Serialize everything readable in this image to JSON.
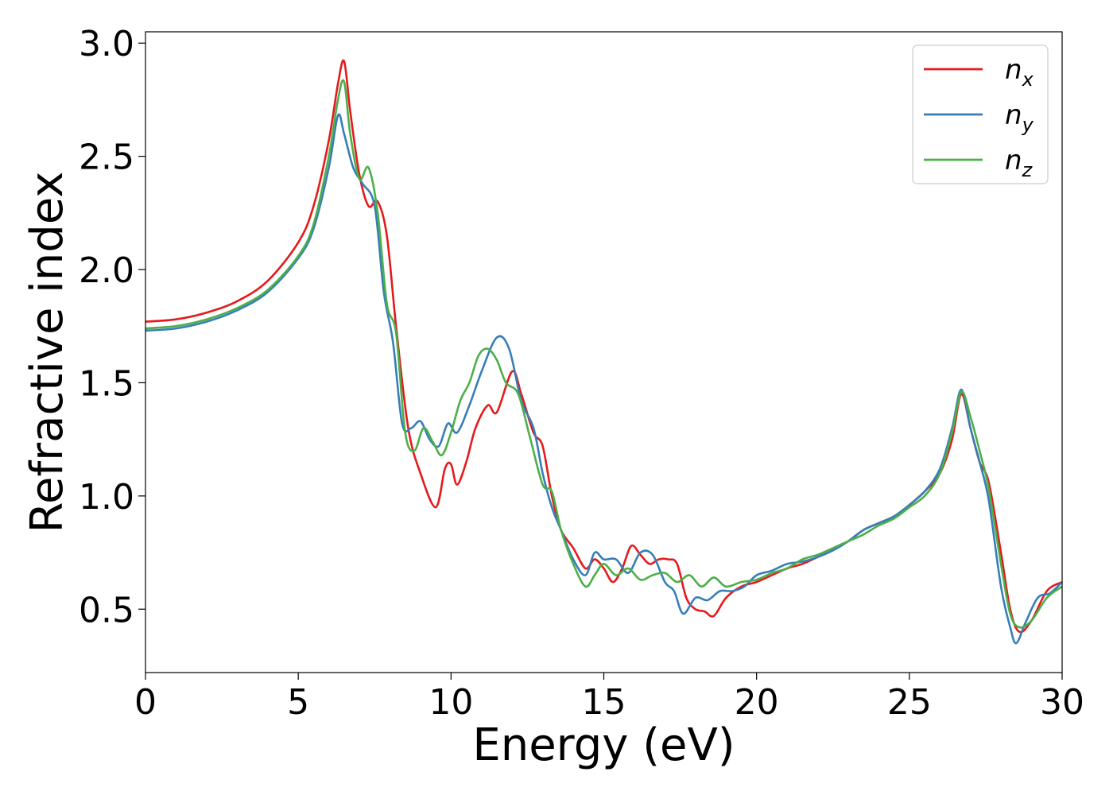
{
  "chart_data": {
    "type": "line",
    "title": "",
    "xlabel": "Energy (eV)",
    "ylabel": "Refractive index",
    "xlim": [
      0,
      30
    ],
    "ylim": [
      0.22,
      3.05
    ],
    "xticks": [
      0,
      5,
      10,
      15,
      20,
      25,
      30
    ],
    "xtick_labels": [
      "0",
      "5",
      "10",
      "15",
      "20",
      "25",
      "30"
    ],
    "yticks": [
      0.5,
      1.0,
      1.5,
      2.0,
      2.5,
      3.0
    ],
    "ytick_labels": [
      "0.5",
      "1.0",
      "1.5",
      "2.0",
      "2.5",
      "3.0"
    ],
    "grid": false,
    "legend_position": "top-right",
    "series": [
      {
        "name": "n_x",
        "legend_base": "n",
        "legend_sub": "x",
        "color": "#e41a1c",
        "x": [
          0,
          1,
          2,
          3,
          4,
          5,
          5.5,
          6.0,
          6.3,
          6.5,
          6.7,
          7.0,
          7.3,
          7.6,
          7.9,
          8.2,
          8.6,
          9.0,
          9.5,
          9.8,
          10.0,
          10.2,
          10.5,
          10.8,
          11.2,
          11.5,
          12.0,
          12.3,
          12.7,
          13.0,
          13.3,
          13.6,
          14.0,
          14.4,
          14.7,
          15.0,
          15.3,
          15.6,
          15.9,
          16.2,
          16.5,
          16.8,
          17.1,
          17.4,
          17.7,
          18.0,
          18.3,
          18.6,
          19.0,
          19.5,
          20.0,
          20.5,
          21.0,
          21.5,
          22.0,
          22.5,
          23.0,
          23.5,
          24.0,
          24.5,
          25.0,
          25.5,
          26.0,
          26.4,
          26.7,
          27.0,
          27.3,
          27.6,
          28.0,
          28.3,
          28.6,
          29.0,
          29.5,
          30.0
        ],
        "values": [
          1.77,
          1.78,
          1.81,
          1.86,
          1.95,
          2.12,
          2.28,
          2.57,
          2.82,
          2.92,
          2.7,
          2.42,
          2.28,
          2.3,
          2.15,
          1.75,
          1.3,
          1.1,
          0.95,
          1.12,
          1.14,
          1.05,
          1.15,
          1.3,
          1.4,
          1.37,
          1.55,
          1.45,
          1.28,
          1.22,
          1.0,
          0.85,
          0.77,
          0.68,
          0.72,
          0.68,
          0.62,
          0.68,
          0.78,
          0.74,
          0.7,
          0.72,
          0.72,
          0.7,
          0.55,
          0.5,
          0.49,
          0.47,
          0.55,
          0.6,
          0.62,
          0.65,
          0.68,
          0.7,
          0.73,
          0.76,
          0.8,
          0.85,
          0.88,
          0.91,
          0.96,
          1.02,
          1.1,
          1.25,
          1.45,
          1.3,
          1.15,
          1.06,
          0.75,
          0.5,
          0.4,
          0.45,
          0.58,
          0.62
        ]
      },
      {
        "name": "n_y",
        "legend_base": "n",
        "legend_sub": "y",
        "color": "#377eb8",
        "x": [
          0,
          1,
          2,
          3,
          4,
          5,
          5.5,
          6.0,
          6.3,
          6.5,
          6.8,
          7.1,
          7.5,
          7.8,
          8.1,
          8.4,
          8.7,
          9.0,
          9.3,
          9.6,
          9.9,
          10.2,
          10.6,
          11.0,
          11.5,
          11.9,
          12.3,
          12.7,
          13.0,
          13.3,
          13.6,
          14.0,
          14.4,
          14.7,
          15.0,
          15.4,
          15.8,
          16.2,
          16.6,
          17.0,
          17.3,
          17.6,
          18.0,
          18.4,
          18.8,
          19.2,
          19.6,
          20.0,
          20.5,
          21.0,
          21.5,
          22.0,
          22.5,
          23.0,
          23.5,
          24.0,
          24.5,
          25.0,
          25.5,
          26.0,
          26.4,
          26.7,
          27.0,
          27.3,
          27.6,
          28.0,
          28.3,
          28.5,
          28.8,
          29.2,
          29.6,
          30.0
        ],
        "values": [
          1.73,
          1.74,
          1.77,
          1.82,
          1.9,
          2.05,
          2.18,
          2.45,
          2.68,
          2.6,
          2.45,
          2.38,
          2.28,
          1.9,
          1.68,
          1.32,
          1.3,
          1.33,
          1.25,
          1.22,
          1.32,
          1.28,
          1.4,
          1.55,
          1.7,
          1.65,
          1.42,
          1.3,
          1.1,
          0.95,
          0.85,
          0.72,
          0.65,
          0.75,
          0.72,
          0.72,
          0.66,
          0.75,
          0.74,
          0.62,
          0.58,
          0.48,
          0.55,
          0.54,
          0.58,
          0.58,
          0.6,
          0.65,
          0.67,
          0.7,
          0.71,
          0.73,
          0.76,
          0.8,
          0.85,
          0.88,
          0.91,
          0.96,
          1.02,
          1.12,
          1.3,
          1.47,
          1.3,
          1.15,
          0.98,
          0.6,
          0.42,
          0.35,
          0.44,
          0.55,
          0.57,
          0.62
        ]
      },
      {
        "name": "n_z",
        "legend_base": "n",
        "legend_sub": "z",
        "color": "#4daf4a",
        "x": [
          0,
          1,
          2,
          3,
          4,
          5,
          5.5,
          6.0,
          6.3,
          6.5,
          6.7,
          7.0,
          7.3,
          7.6,
          7.9,
          8.2,
          8.5,
          8.8,
          9.1,
          9.4,
          9.7,
          10.0,
          10.3,
          10.6,
          10.9,
          11.2,
          11.5,
          11.8,
          12.2,
          12.6,
          13.0,
          13.3,
          13.6,
          14.0,
          14.4,
          14.7,
          15.0,
          15.4,
          15.8,
          16.2,
          16.6,
          17.0,
          17.4,
          17.8,
          18.2,
          18.6,
          19.0,
          19.5,
          20.0,
          20.5,
          21.0,
          21.5,
          22.0,
          22.5,
          23.0,
          23.5,
          24.0,
          24.5,
          25.0,
          25.5,
          26.0,
          26.4,
          26.7,
          27.0,
          27.3,
          27.6,
          28.0,
          28.3,
          28.6,
          29.0,
          29.5,
          30.0
        ],
        "values": [
          1.74,
          1.75,
          1.78,
          1.83,
          1.91,
          2.06,
          2.2,
          2.5,
          2.75,
          2.83,
          2.6,
          2.4,
          2.45,
          2.25,
          1.85,
          1.72,
          1.28,
          1.2,
          1.3,
          1.24,
          1.18,
          1.28,
          1.42,
          1.5,
          1.62,
          1.65,
          1.6,
          1.5,
          1.45,
          1.25,
          1.05,
          1.02,
          0.85,
          0.7,
          0.6,
          0.65,
          0.7,
          0.65,
          0.68,
          0.63,
          0.65,
          0.66,
          0.62,
          0.65,
          0.6,
          0.64,
          0.6,
          0.62,
          0.63,
          0.66,
          0.68,
          0.72,
          0.74,
          0.77,
          0.8,
          0.83,
          0.87,
          0.9,
          0.95,
          1.0,
          1.1,
          1.28,
          1.46,
          1.35,
          1.2,
          1.03,
          0.7,
          0.48,
          0.42,
          0.45,
          0.55,
          0.6
        ]
      }
    ]
  }
}
